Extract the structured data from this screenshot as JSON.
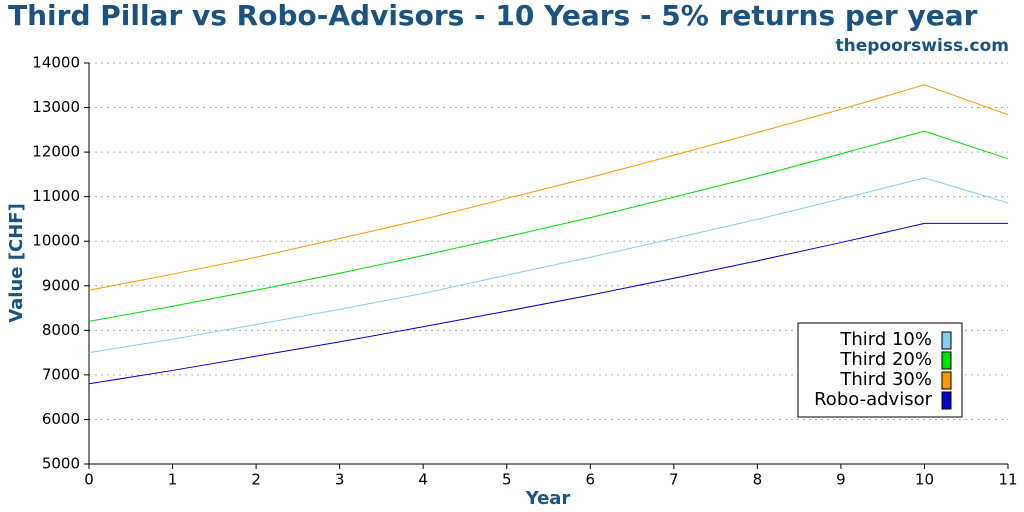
{
  "chart_data": {
    "type": "line",
    "title": "Third Pillar vs Robo-Advisors - 10 Years - 5% returns per year",
    "subtitle": "thepoorswiss.com",
    "x_label": "Year",
    "y_label": "Value [CHF]",
    "x": [
      0,
      1,
      2,
      3,
      4,
      5,
      6,
      7,
      8,
      9,
      10,
      11
    ],
    "series": [
      {
        "name": "Third 10%",
        "color": "#87ceeb",
        "values": [
          7500,
          7800,
          8130,
          8470,
          8830,
          9240,
          9640,
          10060,
          10490,
          10950,
          11420,
          10860
        ]
      },
      {
        "name": "Third 20%",
        "color": "#00dd00",
        "values": [
          8200,
          8540,
          8900,
          9280,
          9680,
          10100,
          10530,
          10990,
          11460,
          11960,
          12470,
          11850
        ]
      },
      {
        "name": "Third 30%",
        "color": "#ff9900",
        "values": [
          8900,
          9260,
          9640,
          10060,
          10490,
          10960,
          11430,
          11930,
          12440,
          12960,
          13510,
          12840
        ]
      },
      {
        "name": "Robo-advisor",
        "color": "#0000cd",
        "values": [
          6800,
          7100,
          7420,
          7740,
          8080,
          8430,
          8790,
          9170,
          9560,
          9970,
          10400,
          10400
        ]
      }
    ],
    "xlim": [
      0,
      11
    ],
    "xticks": [
      0,
      1,
      2,
      3,
      4,
      5,
      6,
      7,
      8,
      9,
      10,
      11
    ],
    "ylim": [
      5000,
      14000
    ],
    "yticks": [
      5000,
      6000,
      7000,
      8000,
      9000,
      10000,
      11000,
      12000,
      13000,
      14000
    ],
    "grid": true,
    "legend": "lower right"
  }
}
